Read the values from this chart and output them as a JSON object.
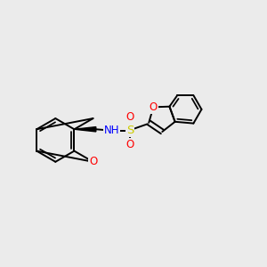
{
  "bg_color": "#ebebeb",
  "bond_color": "#000000",
  "bond_width": 1.4,
  "atom_colors": {
    "O": "#ff0000",
    "N": "#0000ff",
    "S": "#cccc00",
    "C": "#000000",
    "H": "#000000"
  },
  "font_size": 8.5
}
